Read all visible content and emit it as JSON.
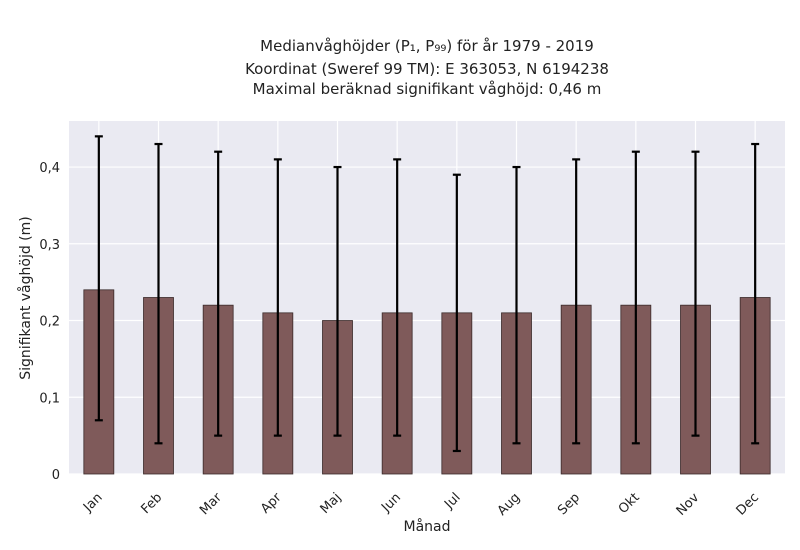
{
  "chart_data": {
    "type": "bar",
    "title_lines": [
      "Medianvåghöjder (P₁, P₉₉) för år 1979 - 2019",
      "Koordinat (Sweref 99 TM): E 363053, N 6194238",
      "Maximal beräknad signifikant våghöjd: 0,46 m"
    ],
    "xlabel": "Månad",
    "ylabel": "Signifikant våghöjd (m)",
    "categories": [
      "Jan",
      "Feb",
      "Mar",
      "Apr",
      "Maj",
      "Jun",
      "Jul",
      "Aug",
      "Sep",
      "Okt",
      "Nov",
      "Dec"
    ],
    "values": [
      0.24,
      0.23,
      0.22,
      0.21,
      0.2,
      0.21,
      0.21,
      0.21,
      0.22,
      0.22,
      0.22,
      0.23
    ],
    "error_low": [
      0.07,
      0.04,
      0.05,
      0.05,
      0.05,
      0.05,
      0.03,
      0.04,
      0.04,
      0.04,
      0.05,
      0.04
    ],
    "error_high": [
      0.44,
      0.43,
      0.42,
      0.41,
      0.4,
      0.41,
      0.39,
      0.4,
      0.41,
      0.42,
      0.42,
      0.43
    ],
    "ylim": [
      0,
      0.46
    ],
    "yticks": [
      0,
      0.1,
      0.2,
      0.3,
      0.4
    ],
    "ytick_labels": [
      "0",
      "0,1",
      "0,2",
      "0,3",
      "0,4"
    ],
    "grid": true,
    "colors": {
      "plot_bg": "#eaeaf2",
      "bar": "#7f5a5a",
      "bar_edge": "#3a2a2a",
      "error": "#000000",
      "grid": "#ffffff"
    }
  }
}
